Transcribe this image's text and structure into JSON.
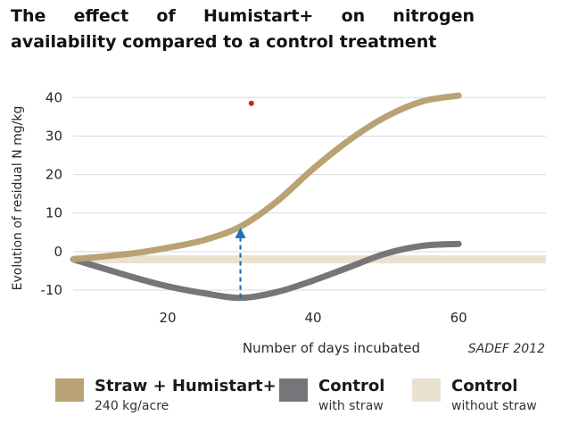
{
  "title": "The effect of Humistart+ on nitrogen availability compared to a control treatment",
  "source_note": "SADEF 2012",
  "colors": {
    "straw_humistart": "#b9a274",
    "control_with_straw": "#76767a",
    "control_without_straw": "#ebe1d1",
    "arrow": "#1f6fb2",
    "marker": "#d0201f",
    "grid": "#d9d9d9",
    "text": "#2a2a2a"
  },
  "chart_data": {
    "type": "line",
    "title": "The effect of Humistart+ on nitrogen availability compared to a control treatment",
    "xlabel": "Number of days incubated",
    "ylabel": "Evolution of residual N mg/kg",
    "xlim": [
      7,
      72
    ],
    "ylim": [
      -13,
      44
    ],
    "x_ticks": [
      20,
      40,
      60
    ],
    "y_ticks": [
      -10,
      0,
      10,
      20,
      30,
      40
    ],
    "grid": "horizontal",
    "legend_position": "bottom",
    "series": [
      {
        "name": "Straw + Humistart+",
        "sub": "240 kg/acre",
        "x": [
          7,
          15,
          20,
          25,
          30,
          35,
          40,
          45,
          50,
          55,
          60
        ],
        "y": [
          -2,
          -0.5,
          1,
          3,
          6.5,
          13,
          21.5,
          29,
          35,
          39,
          40.5
        ]
      },
      {
        "name": "Control",
        "sub": "with straw",
        "x": [
          7,
          15,
          20,
          25,
          30,
          35,
          40,
          45,
          50,
          55,
          60
        ],
        "y": [
          -2,
          -6.5,
          -9,
          -10.8,
          -12,
          -10.5,
          -7.5,
          -4,
          -0.5,
          1.5,
          2
        ]
      },
      {
        "name": "Control",
        "sub": "without straw",
        "x": [
          7,
          72
        ],
        "y": [
          -2,
          -2
        ]
      }
    ],
    "annotations": [
      {
        "type": "arrow",
        "x": 30,
        "y_from": -12,
        "y_to": 6.5
      },
      {
        "type": "point",
        "x": 31.5,
        "y": 38.5
      }
    ]
  }
}
